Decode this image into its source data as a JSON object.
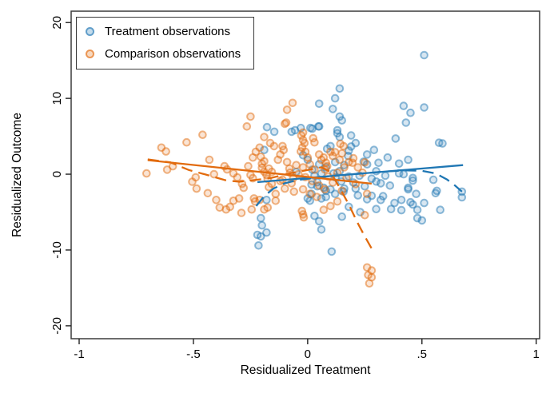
{
  "chart_data": {
    "type": "scatter",
    "title": "",
    "xlabel": "Residualized Treatment",
    "ylabel": "Residualized Outcome",
    "xlim": [
      -1.035,
      1.015
    ],
    "ylim": [
      -21.7,
      21.5
    ],
    "grid": false,
    "legend_position": "top-left-inside",
    "x_tick_values": [
      -1,
      -0.5,
      0,
      0.5,
      1
    ],
    "x_tick_labels": [
      "-1",
      "-.5",
      "0",
      ".5",
      "1"
    ],
    "y_tick_values": [
      -20,
      -10,
      0,
      10,
      20
    ],
    "y_tick_labels": [
      "-20",
      "-10",
      "0",
      "10",
      "20"
    ],
    "frame_color": "#3c3c3c",
    "series": [
      {
        "name": "Treatment observations",
        "color": "#1f77b4",
        "points": [
          [
            0.51,
            15.7
          ],
          [
            0.14,
            11.3
          ],
          [
            0.12,
            10.0
          ],
          [
            0.05,
            9.3
          ],
          [
            0.11,
            8.6
          ],
          [
            0.14,
            7.6
          ],
          [
            0.15,
            7.1
          ],
          [
            0.05,
            6.3
          ],
          [
            -0.03,
            6.1
          ],
          [
            0.02,
            6.0
          ],
          [
            0.13,
            5.8
          ],
          [
            0.42,
            9.0
          ],
          [
            0.45,
            8.1
          ],
          [
            0.51,
            8.8
          ],
          [
            0.43,
            6.8
          ],
          [
            0.385,
            4.7
          ],
          [
            0.29,
            3.2
          ],
          [
            0.575,
            4.15
          ],
          [
            0.59,
            4.05
          ],
          [
            0.44,
            1.9
          ],
          [
            0.4,
            1.4
          ],
          [
            -0.07,
            5.6
          ],
          [
            -0.055,
            5.8
          ],
          [
            0.012,
            6.1
          ],
          [
            0.047,
            6.3
          ],
          [
            0.13,
            5.4
          ],
          [
            0.14,
            4.9
          ],
          [
            0.19,
            5.1
          ],
          [
            0.21,
            4.1
          ],
          [
            0.18,
            3.1
          ],
          [
            0.177,
            2.4
          ],
          [
            -0.146,
            5.6
          ],
          [
            -0.178,
            6.2
          ],
          [
            -0.19,
            3.2
          ],
          [
            0.085,
            3.35
          ],
          [
            0.1,
            3.7
          ],
          [
            0.113,
            0.1
          ],
          [
            0.122,
            -0.42
          ],
          [
            0.147,
            -0.95
          ],
          [
            0.042,
            -1.06
          ],
          [
            0.017,
            -1.37
          ],
          [
            0.07,
            -1.8
          ],
          [
            0.1,
            -2.0
          ],
          [
            0.03,
            -0.2
          ],
          [
            0.42,
            0.0
          ],
          [
            0.46,
            -0.5
          ],
          [
            0.44,
            -1.8
          ],
          [
            0.475,
            -2.6
          ],
          [
            0.41,
            -3.4
          ],
          [
            0.45,
            -3.7
          ],
          [
            0.46,
            -4.0
          ],
          [
            0.48,
            -4.7
          ],
          [
            0.51,
            -3.8
          ],
          [
            0.56,
            -2.5
          ],
          [
            0.58,
            -4.7
          ],
          [
            0.48,
            -5.8
          ],
          [
            0.5,
            -6.1
          ],
          [
            0.675,
            -2.3
          ],
          [
            0.675,
            -3.05
          ],
          [
            0.245,
            1.65
          ],
          [
            0.26,
            1.3
          ],
          [
            0.227,
            -0.2
          ],
          [
            0.3,
            -0.97
          ],
          [
            0.32,
            -1.2
          ],
          [
            0.4,
            0.1
          ],
          [
            0.46,
            -0.85
          ],
          [
            0.55,
            -0.74
          ],
          [
            0.44,
            -2.0
          ],
          [
            0.565,
            -2.2
          ],
          [
            0.19,
            3.65
          ],
          [
            -0.18,
            -3.4
          ],
          [
            -0.205,
            -5.8
          ],
          [
            -0.2,
            -6.75
          ],
          [
            -0.22,
            -8.0
          ],
          [
            -0.205,
            -8.2
          ],
          [
            -0.18,
            -7.7
          ],
          [
            -0.215,
            -9.4
          ],
          [
            0.0,
            -3.2
          ],
          [
            0.01,
            -3.5
          ],
          [
            0.03,
            -5.5
          ],
          [
            0.06,
            -7.3
          ],
          [
            0.105,
            -10.2
          ],
          [
            -0.02,
            2.5
          ],
          [
            0.0,
            1.9
          ],
          [
            0.05,
            1.3
          ],
          [
            0.08,
            0.9
          ],
          [
            0.12,
            1.6
          ],
          [
            0.16,
            1.2
          ],
          [
            0.02,
            0.6
          ],
          [
            -0.05,
            0.3
          ],
          [
            0.06,
            0.1
          ],
          [
            0.14,
            0.4
          ],
          [
            0.18,
            -0.3
          ],
          [
            0.2,
            -1.1
          ],
          [
            0.16,
            -1.9
          ],
          [
            0.12,
            -2.6
          ],
          [
            0.08,
            -3.0
          ],
          [
            0.22,
            -2.8
          ],
          [
            0.26,
            -3.3
          ],
          [
            0.18,
            -4.3
          ],
          [
            0.23,
            -5.0
          ],
          [
            0.15,
            -5.6
          ],
          [
            0.25,
            -1.6
          ],
          [
            0.28,
            -0.6
          ],
          [
            0.3,
            0.4
          ],
          [
            0.34,
            -0.2
          ],
          [
            0.36,
            -1.5
          ],
          [
            0.33,
            -2.9
          ],
          [
            0.38,
            -3.8
          ],
          [
            0.3,
            -4.6
          ],
          [
            0.35,
            2.2
          ],
          [
            0.26,
            2.6
          ],
          [
            0.31,
            1.5
          ],
          [
            0.042,
            -1.6
          ],
          [
            0.06,
            -3.2
          ],
          [
            0.017,
            -2.6
          ],
          [
            0.08,
            -2.2
          ],
          [
            0.21,
            -1.9
          ],
          [
            0.28,
            -2.85
          ],
          [
            0.32,
            -3.4
          ],
          [
            0.365,
            -4.6
          ],
          [
            0.41,
            -4.75
          ],
          [
            0.05,
            -6.2
          ],
          [
            0.157,
            -2.3
          ]
        ]
      },
      {
        "name": "Comparison observations",
        "color": "#e26b0e",
        "points": [
          [
            -0.705,
            0.1
          ],
          [
            -0.64,
            3.5
          ],
          [
            -0.62,
            3.0
          ],
          [
            -0.615,
            0.6
          ],
          [
            -0.59,
            1.05
          ],
          [
            -0.53,
            4.2
          ],
          [
            -0.46,
            5.2
          ],
          [
            -0.43,
            1.9
          ],
          [
            -0.41,
            0.0
          ],
          [
            -0.505,
            -1.0
          ],
          [
            -0.486,
            -1.9
          ],
          [
            -0.49,
            -0.42
          ],
          [
            -0.437,
            -2.5
          ],
          [
            -0.385,
            -4.4
          ],
          [
            -0.357,
            -4.65
          ],
          [
            -0.4,
            -3.4
          ],
          [
            -0.325,
            0.1
          ],
          [
            -0.308,
            -0.42
          ],
          [
            -0.287,
            -1.27
          ],
          [
            -0.28,
            -1.8
          ],
          [
            -0.25,
            -0.1
          ],
          [
            -0.24,
            -0.53
          ],
          [
            -0.364,
            1.05
          ],
          [
            -0.353,
            0.63
          ],
          [
            -0.26,
            1.05
          ],
          [
            -0.24,
            2.2
          ],
          [
            -0.227,
            2.96
          ],
          [
            -0.21,
            3.5
          ],
          [
            -0.2,
            1.37
          ],
          [
            -0.2,
            0.84
          ],
          [
            -0.19,
            0.32
          ],
          [
            -0.18,
            -0.1
          ],
          [
            -0.175,
            -0.63
          ],
          [
            -0.157,
            -1.27
          ],
          [
            -0.17,
            -1.7
          ],
          [
            -0.205,
            2.3
          ],
          [
            -0.21,
            -3.4
          ],
          [
            -0.19,
            -4.65
          ],
          [
            -0.245,
            -4.65
          ],
          [
            -0.34,
            -4.3
          ],
          [
            -0.325,
            -3.5
          ],
          [
            -0.3,
            -3.2
          ],
          [
            -0.29,
            -5.1
          ],
          [
            -0.235,
            -3.2
          ],
          [
            -0.23,
            -3.6
          ],
          [
            -0.175,
            -4.4
          ],
          [
            -0.14,
            -3.5
          ],
          [
            -0.066,
            9.4
          ],
          [
            -0.09,
            8.5
          ],
          [
            -0.25,
            7.6
          ],
          [
            -0.266,
            6.3
          ],
          [
            -0.094,
            6.8
          ],
          [
            -0.02,
            5.5
          ],
          [
            -0.1,
            6.65
          ],
          [
            -0.028,
            5.1
          ],
          [
            -0.02,
            4.5
          ],
          [
            -0.014,
            4.1
          ],
          [
            -0.024,
            3.5
          ],
          [
            -0.01,
            2.96
          ],
          [
            0.024,
            4.75
          ],
          [
            0.03,
            4.2
          ],
          [
            0.06,
            1.9
          ],
          [
            0.07,
            2.2
          ],
          [
            0.08,
            1.5
          ],
          [
            0.085,
            1.05
          ],
          [
            0.075,
            0.63
          ],
          [
            0.1,
            2.96
          ],
          [
            0.11,
            2.4
          ],
          [
            -0.11,
            3.7
          ],
          [
            -0.105,
            3.2
          ],
          [
            -0.12,
            2.6
          ],
          [
            -0.147,
            3.7
          ],
          [
            -0.164,
            4.1
          ],
          [
            -0.19,
            4.9
          ],
          [
            -0.19,
            1.7
          ],
          [
            -0.17,
            0.74
          ],
          [
            -0.157,
            0.3
          ],
          [
            -0.08,
            0.74
          ],
          [
            -0.077,
            0.2
          ],
          [
            -0.063,
            -0.53
          ],
          [
            -0.11,
            -0.74
          ],
          [
            0.143,
            4.0
          ],
          [
            0.157,
            3.7
          ],
          [
            0.15,
            2.75
          ],
          [
            0.2,
            2.1
          ],
          [
            0.196,
            1.5
          ],
          [
            -0.025,
            -4.85
          ],
          [
            -0.02,
            -5.3
          ],
          [
            -0.017,
            -5.7
          ],
          [
            0.26,
            -2.6
          ],
          [
            0.25,
            1.55
          ],
          [
            0.075,
            -2.0
          ],
          [
            0.25,
            -5.4
          ],
          [
            0.26,
            -12.3
          ],
          [
            0.28,
            -12.7
          ],
          [
            0.265,
            -13.3
          ],
          [
            0.28,
            -13.6
          ],
          [
            0.27,
            -14.4
          ],
          [
            -0.13,
            1.9
          ],
          [
            -0.09,
            1.6
          ],
          [
            -0.05,
            1.2
          ],
          [
            -0.02,
            0.9
          ],
          [
            0.01,
            1.3
          ],
          [
            0.03,
            0.6
          ],
          [
            -0.04,
            0.0
          ],
          [
            -0.01,
            -0.4
          ],
          [
            0.02,
            -0.9
          ],
          [
            -0.07,
            -1.2
          ],
          [
            -0.12,
            -0.9
          ],
          [
            -0.1,
            -1.9
          ],
          [
            -0.06,
            -2.3
          ],
          [
            -0.02,
            -2.0
          ],
          [
            0.01,
            -2.6
          ],
          [
            0.05,
            -1.5
          ],
          [
            0.04,
            -3.0
          ],
          [
            -0.14,
            -2.6
          ],
          [
            0.0,
            2.2
          ],
          [
            0.05,
            2.6
          ],
          [
            -0.03,
            3.0
          ],
          [
            0.09,
            -0.3
          ],
          [
            0.11,
            -1.1
          ],
          [
            0.13,
            0.2
          ],
          [
            0.12,
            2.9
          ],
          [
            0.14,
            1.9
          ],
          [
            0.16,
            0.9
          ],
          [
            0.17,
            -0.5
          ],
          [
            0.15,
            -2.2
          ],
          [
            0.1,
            -4.2
          ],
          [
            0.07,
            -4.7
          ],
          [
            0.13,
            -3.6
          ],
          [
            0.18,
            1.6
          ],
          [
            0.22,
            0.9
          ],
          [
            0.24,
            0.2
          ],
          [
            0.21,
            -1.3
          ]
        ]
      }
    ],
    "fit_lines": [
      {
        "series": "Treatment observations",
        "color": "#1f77b4",
        "style": "solid",
        "points": [
          [
            -0.22,
            -1.05
          ],
          [
            0.68,
            1.2
          ]
        ]
      },
      {
        "series": "Treatment observations",
        "color": "#1f77b4",
        "style": "dashed",
        "points": [
          [
            -0.225,
            -4.2
          ],
          [
            -0.19,
            -2.9
          ],
          [
            -0.15,
            -1.9
          ],
          [
            -0.1,
            -1.2
          ],
          [
            -0.04,
            -0.75
          ],
          [
            0.04,
            -0.45
          ],
          [
            0.12,
            -0.2
          ],
          [
            0.22,
            0.05
          ],
          [
            0.32,
            0.3
          ],
          [
            0.42,
            0.5
          ],
          [
            0.5,
            0.45
          ],
          [
            0.56,
            0.1
          ],
          [
            0.61,
            -0.7
          ],
          [
            0.645,
            -1.5
          ],
          [
            0.675,
            -2.3
          ]
        ]
      },
      {
        "series": "Comparison observations",
        "color": "#e26b0e",
        "style": "solid",
        "points": [
          [
            -0.7,
            1.85
          ],
          [
            0.28,
            -1.25
          ]
        ]
      },
      {
        "series": "Comparison observations",
        "color": "#e26b0e",
        "style": "dashed",
        "points": [
          [
            -0.7,
            1.95
          ],
          [
            -0.6,
            1.55
          ],
          [
            -0.52,
            0.55
          ],
          [
            -0.44,
            -0.1
          ],
          [
            -0.36,
            -0.8
          ],
          [
            -0.3,
            -1.0
          ],
          [
            -0.24,
            -0.8
          ],
          [
            -0.16,
            -0.5
          ],
          [
            -0.08,
            0.1
          ],
          [
            0.0,
            0.55
          ],
          [
            0.06,
            0.9
          ],
          [
            0.1,
            0.3
          ],
          [
            0.14,
            -1.8
          ],
          [
            0.18,
            -4.0
          ],
          [
            0.22,
            -6.5
          ],
          [
            0.25,
            -8.2
          ],
          [
            0.28,
            -9.8
          ]
        ]
      }
    ],
    "legend": {
      "entries": [
        {
          "label": "Treatment observations",
          "color": "#1f77b4"
        },
        {
          "label": "Comparison observations",
          "color": "#e26b0e"
        }
      ]
    }
  }
}
